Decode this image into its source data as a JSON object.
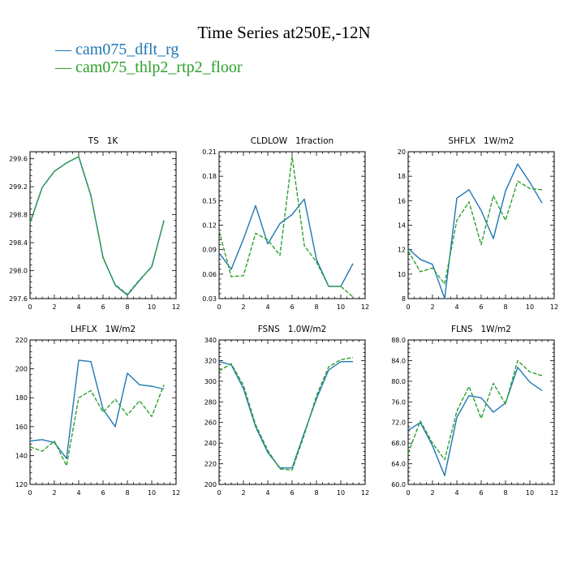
{
  "title": "Time Series at250E,-12N",
  "legend": [
    {
      "marker": "—",
      "label": "cam075_dflt_rg",
      "color": "#1f77b4",
      "dash": "solid"
    },
    {
      "marker": "—",
      "label": "cam075_thlp2_rtp2_floor",
      "color": "#2ca02c",
      "dash": "dashed"
    }
  ],
  "chart_data": [
    {
      "type": "line",
      "title": "TS   1K",
      "x": [
        0,
        1,
        2,
        3,
        4,
        5,
        6,
        7,
        8,
        9,
        10,
        11
      ],
      "xlim": [
        0,
        12
      ],
      "xticks": [
        0,
        2,
        4,
        6,
        8,
        10,
        12
      ],
      "ylim": [
        297.6,
        299.7
      ],
      "yticks": [
        297.6,
        298.0,
        298.4,
        298.8,
        299.2,
        299.6
      ],
      "ytick_labels": [
        "297.6",
        "298.0",
        "298.4",
        "298.8",
        "299.2",
        "299.6"
      ],
      "series": [
        {
          "name": "cam075_dflt_rg",
          "values": [
            298.68,
            299.19,
            299.42,
            299.54,
            299.63,
            299.07,
            298.19,
            297.79,
            297.65,
            297.86,
            298.06,
            298.71
          ]
        },
        {
          "name": "cam075_thlp2_rtp2_floor",
          "values": [
            298.68,
            299.19,
            299.42,
            299.54,
            299.63,
            299.08,
            298.18,
            297.8,
            297.66,
            297.87,
            298.05,
            298.72
          ]
        }
      ]
    },
    {
      "type": "line",
      "title": "CLDLOW   1fraction",
      "x": [
        0,
        1,
        2,
        3,
        4,
        5,
        6,
        7,
        8,
        9,
        10,
        11
      ],
      "xlim": [
        0,
        12
      ],
      "xticks": [
        0,
        2,
        4,
        6,
        8,
        10,
        12
      ],
      "ylim": [
        0.03,
        0.21
      ],
      "yticks": [
        0.03,
        0.06,
        0.09,
        0.12,
        0.15,
        0.18,
        0.21
      ],
      "ytick_labels": [
        "0.03",
        "0.06",
        "0.09",
        "0.12",
        "0.15",
        "0.18",
        "0.21"
      ],
      "series": [
        {
          "name": "cam075_dflt_rg",
          "values": [
            0.086,
            0.066,
            0.103,
            0.144,
            0.097,
            0.122,
            0.133,
            0.152,
            0.078,
            0.045,
            0.045,
            0.073
          ]
        },
        {
          "name": "cam075_thlp2_rtp2_floor",
          "values": [
            0.113,
            0.057,
            0.058,
            0.11,
            0.102,
            0.083,
            0.204,
            0.095,
            0.075,
            0.045,
            0.045,
            0.032
          ]
        }
      ]
    },
    {
      "type": "line",
      "title": "SHFLX   1W/m2",
      "x": [
        0,
        1,
        2,
        3,
        4,
        5,
        6,
        7,
        8,
        9,
        10,
        11
      ],
      "xlim": [
        0,
        12
      ],
      "xticks": [
        0,
        2,
        4,
        6,
        8,
        10,
        12
      ],
      "ylim": [
        8,
        20
      ],
      "yticks": [
        8,
        10,
        12,
        14,
        16,
        18,
        20
      ],
      "ytick_labels": [
        "8",
        "10",
        "12",
        "14",
        "16",
        "18",
        "20"
      ],
      "series": [
        {
          "name": "cam075_dflt_rg",
          "values": [
            12.1,
            11.2,
            10.8,
            8.0,
            16.2,
            16.9,
            15.2,
            12.9,
            16.8,
            19.0,
            17.5,
            15.8
          ]
        },
        {
          "name": "cam075_thlp2_rtp2_floor",
          "values": [
            11.9,
            10.2,
            10.5,
            9.2,
            14.4,
            15.9,
            12.4,
            16.4,
            14.4,
            17.6,
            17.0,
            16.9
          ]
        }
      ]
    },
    {
      "type": "line",
      "title": "LHFLX   1W/m2",
      "x": [
        0,
        1,
        2,
        3,
        4,
        5,
        6,
        7,
        8,
        9,
        10,
        11
      ],
      "xlim": [
        0,
        12
      ],
      "xticks": [
        0,
        2,
        4,
        6,
        8,
        10,
        12
      ],
      "ylim": [
        120,
        220
      ],
      "yticks": [
        120,
        140,
        160,
        180,
        200,
        220
      ],
      "ytick_labels": [
        "120",
        "140",
        "160",
        "180",
        "200",
        "220"
      ],
      "series": [
        {
          "name": "cam075_dflt_rg",
          "values": [
            150,
            151,
            149,
            138,
            206,
            205,
            172,
            160,
            197,
            189,
            188,
            186
          ]
        },
        {
          "name": "cam075_thlp2_rtp2_floor",
          "values": [
            146,
            143,
            150,
            133,
            180,
            185,
            170,
            179,
            168,
            178,
            167,
            189
          ]
        }
      ]
    },
    {
      "type": "line",
      "title": "FSNS   1.0W/m2",
      "x": [
        0,
        1,
        2,
        3,
        4,
        5,
        6,
        7,
        8,
        9,
        10,
        11
      ],
      "xlim": [
        0,
        12
      ],
      "xticks": [
        0,
        2,
        4,
        6,
        8,
        10,
        12
      ],
      "ylim": [
        200,
        340
      ],
      "yticks": [
        200,
        220,
        240,
        260,
        280,
        300,
        320,
        340
      ],
      "ytick_labels": [
        "200",
        "220",
        "240",
        "260",
        "280",
        "300",
        "320",
        "340"
      ],
      "series": [
        {
          "name": "cam075_dflt_rg",
          "values": [
            319,
            316,
            293,
            256,
            231,
            216,
            216,
            250,
            283,
            311,
            319,
            319
          ]
        },
        {
          "name": "cam075_thlp2_rtp2_floor",
          "values": [
            310,
            317,
            296,
            258,
            233,
            215,
            214,
            248,
            286,
            314,
            321,
            323
          ]
        }
      ]
    },
    {
      "type": "line",
      "title": "FLNS   1W/m2",
      "x": [
        0,
        1,
        2,
        3,
        4,
        5,
        6,
        7,
        8,
        9,
        10,
        11
      ],
      "xlim": [
        0,
        12
      ],
      "xticks": [
        0,
        2,
        4,
        6,
        8,
        10,
        12
      ],
      "ylim": [
        60,
        88
      ],
      "yticks": [
        60,
        64,
        68,
        72,
        76,
        80,
        84,
        88
      ],
      "ytick_labels": [
        "60.0",
        "64.0",
        "68.0",
        "72.0",
        "76.0",
        "80.0",
        "84.0",
        "88.0"
      ],
      "series": [
        {
          "name": "cam075_dflt_rg",
          "values": [
            70.5,
            72.0,
            67.5,
            61.7,
            73.0,
            77.2,
            76.8,
            74.0,
            75.8,
            82.7,
            79.8,
            78.2
          ]
        },
        {
          "name": "cam075_thlp2_rtp2_floor",
          "values": [
            66.0,
            72.3,
            68.0,
            64.8,
            74.2,
            79.0,
            72.8,
            79.6,
            75.6,
            84.0,
            81.8,
            81.1
          ]
        }
      ]
    }
  ]
}
